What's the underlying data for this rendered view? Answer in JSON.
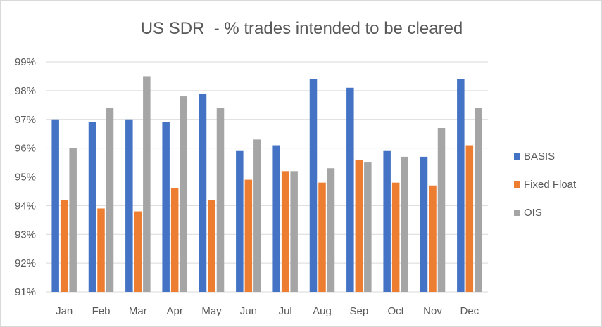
{
  "chart_data": {
    "type": "bar",
    "title": "US SDR  - % trades intended to be cleared",
    "xlabel": "",
    "ylabel": "",
    "categories": [
      "Jan",
      "Feb",
      "Mar",
      "Apr",
      "May",
      "Jun",
      "Jul",
      "Aug",
      "Sep",
      "Oct",
      "Nov",
      "Dec"
    ],
    "series": [
      {
        "name": "BASIS",
        "color": "#4472c4",
        "values": [
          97.0,
          96.9,
          97.0,
          96.9,
          97.9,
          95.9,
          96.1,
          98.4,
          98.1,
          95.9,
          95.7,
          98.4
        ]
      },
      {
        "name": "Fixed Float",
        "color": "#ed7d31",
        "values": [
          94.2,
          93.9,
          93.8,
          94.6,
          94.2,
          94.9,
          95.2,
          94.8,
          95.6,
          94.8,
          94.7,
          96.1
        ]
      },
      {
        "name": "OIS",
        "color": "#a5a5a5",
        "values": [
          96.0,
          97.4,
          98.5,
          97.8,
          97.4,
          96.3,
          95.2,
          95.3,
          95.5,
          95.7,
          96.7,
          97.4
        ]
      }
    ],
    "ylim": [
      91,
      99
    ],
    "yticks": [
      "91%",
      "92%",
      "93%",
      "94%",
      "95%",
      "96%",
      "97%",
      "98%",
      "99%"
    ],
    "grid": true,
    "legend_position": "right"
  }
}
